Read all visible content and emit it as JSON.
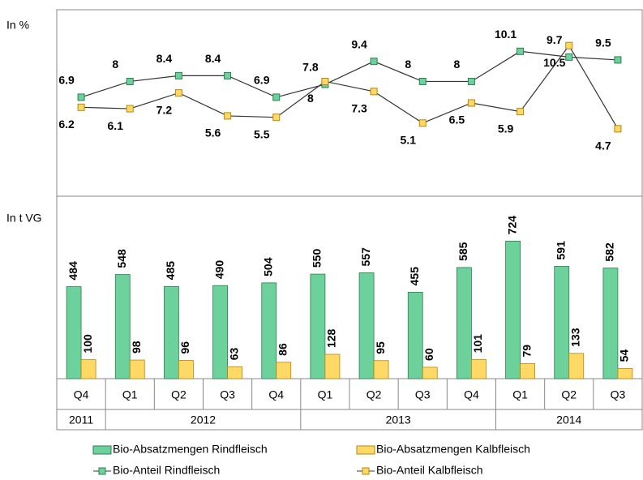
{
  "chart_data": [
    {
      "type": "line",
      "ylabel": "In %",
      "ylim": [
        0,
        13
      ],
      "series": [
        {
          "name": "Bio-Anteil Rindfleisch",
          "color": "#6dd19b",
          "values": [
            6.9,
            8.0,
            8.4,
            8.4,
            6.9,
            7.8,
            9.4,
            8.0,
            8.0,
            10.1,
            9.7,
            9.5
          ]
        },
        {
          "name": "Bio-Anteil Kalbfleisch",
          "color": "#ffd966",
          "values": [
            6.2,
            6.1,
            7.2,
            5.6,
            5.5,
            8.0,
            7.3,
            5.1,
            6.5,
            5.9,
            10.5,
            4.7
          ]
        }
      ]
    },
    {
      "type": "bar",
      "ylabel": "In t VG",
      "ylim": [
        0,
        960
      ],
      "groups": [
        {
          "label": "2011",
          "categories": [
            "Q4"
          ]
        },
        {
          "label": "2012",
          "categories": [
            "Q1",
            "Q2",
            "Q3",
            "Q4"
          ]
        },
        {
          "label": "2013",
          "categories": [
            "Q1",
            "Q2",
            "Q3",
            "Q4"
          ]
        },
        {
          "label": "2014",
          "categories": [
            "Q1",
            "Q2",
            "Q3"
          ]
        }
      ],
      "series": [
        {
          "name": "Bio-Absatzmengen Rindfleisch",
          "color": "#6dd19b",
          "values": [
            484,
            548,
            485,
            490,
            504,
            550,
            557,
            455,
            585,
            724,
            591,
            582
          ]
        },
        {
          "name": "Bio-Absatzmengen Kalbfleisch",
          "color": "#ffd966",
          "values": [
            100,
            98,
            96,
            63,
            86,
            128,
            95,
            60,
            101,
            79,
            133,
            54
          ]
        }
      ]
    }
  ]
}
